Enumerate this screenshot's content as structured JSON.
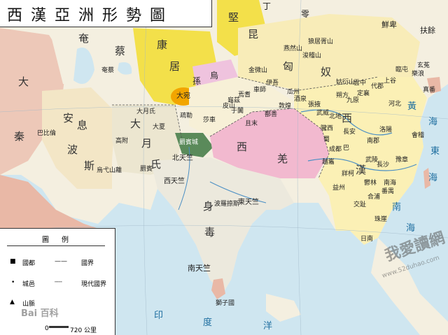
{
  "title": "西漢亞洲形勢圖",
  "regions": {
    "da_qin": "大",
    "da_qin2": "秦",
    "an_xi": "安",
    "an_xi2": "息",
    "bo_si": "波",
    "bo_si2": "斯",
    "kang_ju": "康",
    "kang_ju2": "居",
    "yan_cai": "奄",
    "yan_cai2": "蔡",
    "da_yue_zhi": "大",
    "da_yue_zhi2": "月",
    "da_yue_zhi3": "氏",
    "jian_kun": "堅",
    "jian_kun2": "昆",
    "xiong_nu": "匈",
    "xiong_nu2": "奴",
    "wu_sun": "烏",
    "wu_sun2": "孫",
    "xi_qiang": "西",
    "xi_qiang2": "羌",
    "xi_han": "西",
    "xi_han2": "漢",
    "shen_du": "身",
    "shen_du2": "毒",
    "da_wan": "大宛",
    "ding_ling": "丁",
    "ling": "零",
    "xian_bei": "鮮卑",
    "fu_yu": "扶餘",
    "nan_tianzhu": "南天竺",
    "bei_tianzhu": "北天竺",
    "xi_tianzhu": "西天竺",
    "dong_tianzhu": "東天竺"
  },
  "cities": {
    "c1": "疏勒",
    "c2": "莎車",
    "c3": "大月氏",
    "c4": "大夏",
    "c5": "高附",
    "c6": "罽賓",
    "c7": "巴比倫",
    "c8": "烏弋山離",
    "c9": "奄蔡",
    "c10": "金微山",
    "c11": "燕然山",
    "c12": "浚稽山",
    "c13": "狼居胥山",
    "c14": "姑衍山",
    "c15": "酒泉",
    "c16": "敦煌",
    "c17": "武威",
    "c18": "張掖",
    "c19": "長安",
    "c20": "洛陽",
    "c21": "成都",
    "c22": "番禺",
    "c23": "交趾",
    "c24": "珠崖",
    "c25": "南海",
    "c26": "合浦",
    "c27": "玄菟",
    "c28": "樂浪",
    "c29": "真番",
    "c30": "臨屯",
    "c31": "代郡",
    "c32": "上谷",
    "c33": "定襄",
    "c34": "雲中",
    "c35": "朔方",
    "c36": "九原",
    "c37": "北地",
    "c38": "隴西",
    "c39": "巴",
    "c40": "蜀",
    "c41": "武陵",
    "c42": "長沙",
    "c43": "豫章",
    "c44": "會稽",
    "c45": "南郡",
    "c46": "牂柯",
    "c47": "越巂",
    "c48": "益州",
    "c49": "鬱林",
    "c50": "日南",
    "c51": "波羅捺斯",
    "c52": "獅子國",
    "c53": "罽賓城",
    "c54": "伊吾",
    "c55": "瓜州",
    "c56": "河北",
    "c57": "焉耆",
    "c58": "車師",
    "c59": "龜茲",
    "c60": "于闐",
    "c61": "皮山",
    "c62": "且末",
    "c63": "鄯善"
  },
  "seas": {
    "s1": "南",
    "s2": "海",
    "s3": "黃",
    "s4": "海",
    "s5": "東",
    "s6": "海",
    "s7": "印",
    "s8": "度",
    "s9": "洋"
  },
  "legend": {
    "title": "圖例",
    "capital": "國都",
    "border": "國界",
    "city": "城邑",
    "modern_border": "現代國界",
    "mountain": "山脈"
  },
  "scale": {
    "zero": "0",
    "unit": "720 公里"
  },
  "watermark": {
    "text": "我愛讀網",
    "site": "www.52duhao.com",
    "baidu": "Bai 百科"
  },
  "colors": {
    "sea": "#cfe6f0",
    "land": "#f4efe0",
    "han": "#fbf0b5",
    "xiongnu": "#f8ecb8",
    "kangju": "#f3e04a",
    "daqin": "#e9b8a6",
    "qiang": "#f2b9cf",
    "wusun": "#efc3de",
    "dawan": "#f2a500",
    "jibin": "#5a8a5a",
    "yuezhi": "#ece6d0",
    "anxi": "#f3e6c6",
    "shendu": "#ece9dd"
  }
}
